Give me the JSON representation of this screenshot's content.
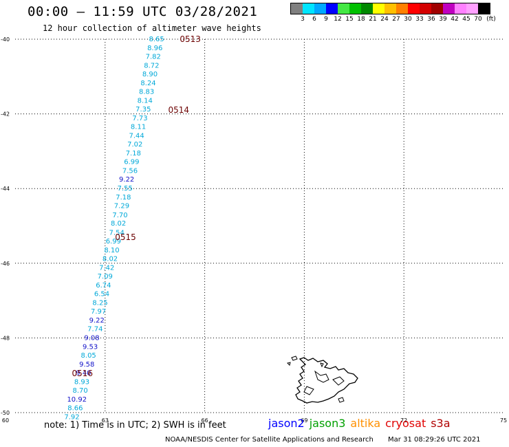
{
  "header": {
    "title": "00:00 – 11:59 UTC 03/28/2021",
    "subtitle": "12 hour collection of altimeter wave heights"
  },
  "legend": {
    "unit": "(ft)",
    "swatch_colors": [
      "#808080",
      "#00e5ff",
      "#00a8ff",
      "#0000ff",
      "#44e844",
      "#00c000",
      "#008800",
      "#ffff00",
      "#ffc000",
      "#ff8000",
      "#ff0000",
      "#d40000",
      "#a00000",
      "#c000c0",
      "#ff80ff",
      "#ffa0ff",
      "#000000"
    ],
    "ticks": [
      "3",
      "6",
      "9",
      "12",
      "15",
      "18",
      "21",
      "24",
      "27",
      "30",
      "33",
      "36",
      "39",
      "42",
      "45",
      "70"
    ]
  },
  "map": {
    "x_axis_labels": [
      "60",
      "63",
      "66",
      "69",
      "72",
      "75"
    ],
    "y_axis_labels": [
      "-40",
      "-42",
      "-44",
      "-46",
      "-48",
      "-50"
    ]
  },
  "chart_data": {
    "type": "scatter",
    "xlim": [
      60,
      75
    ],
    "ylim": [
      -50,
      -40
    ],
    "grid": true,
    "xticks": [
      60,
      63,
      66,
      69,
      72,
      75
    ],
    "yticks": [
      -40,
      -42,
      -44,
      -46,
      -48,
      -50
    ],
    "swh_points": [
      {
        "lon": 64.55,
        "lat": -40.0,
        "swh": "8.65",
        "color": "#00a8d8"
      },
      {
        "lon": 64.5,
        "lat": -40.24,
        "swh": "8.96",
        "color": "#00a8d8"
      },
      {
        "lon": 64.45,
        "lat": -40.47,
        "swh": "7.82",
        "color": "#00a8d8"
      },
      {
        "lon": 64.4,
        "lat": -40.71,
        "swh": "8.72",
        "color": "#00a8d8"
      },
      {
        "lon": 64.35,
        "lat": -40.94,
        "swh": "8.90",
        "color": "#00a8d8"
      },
      {
        "lon": 64.3,
        "lat": -41.18,
        "swh": "8.24",
        "color": "#00a8d8"
      },
      {
        "lon": 64.25,
        "lat": -41.41,
        "swh": "8.83",
        "color": "#00a8d8"
      },
      {
        "lon": 64.2,
        "lat": -41.65,
        "swh": "8.14",
        "color": "#00a8d8"
      },
      {
        "lon": 64.15,
        "lat": -41.88,
        "swh": "7.35",
        "color": "#00a8d8"
      },
      {
        "lon": 64.05,
        "lat": -42.12,
        "swh": "7.73",
        "color": "#00a8d8"
      },
      {
        "lon": 64.0,
        "lat": -42.35,
        "swh": "8.11",
        "color": "#00a8d8"
      },
      {
        "lon": 63.95,
        "lat": -42.59,
        "swh": "7.44",
        "color": "#00a8d8"
      },
      {
        "lon": 63.9,
        "lat": -42.82,
        "swh": "7.02",
        "color": "#00a8d8"
      },
      {
        "lon": 63.85,
        "lat": -43.06,
        "swh": "7.18",
        "color": "#00a8d8"
      },
      {
        "lon": 63.8,
        "lat": -43.29,
        "swh": "6.99",
        "color": "#00a8d8"
      },
      {
        "lon": 63.75,
        "lat": -43.53,
        "swh": "7.56",
        "color": "#00a8d8"
      },
      {
        "lon": 63.65,
        "lat": -43.76,
        "swh": "9.22",
        "color": "#1010c8"
      },
      {
        "lon": 63.6,
        "lat": -44.0,
        "swh": "7.55",
        "color": "#00a8d8"
      },
      {
        "lon": 63.55,
        "lat": -44.24,
        "swh": "7.18",
        "color": "#00a8d8"
      },
      {
        "lon": 63.5,
        "lat": -44.47,
        "swh": "7.29",
        "color": "#00a8d8"
      },
      {
        "lon": 63.45,
        "lat": -44.71,
        "swh": "7.70",
        "color": "#00a8d8"
      },
      {
        "lon": 63.4,
        "lat": -44.94,
        "swh": "8.02",
        "color": "#00a8d8"
      },
      {
        "lon": 63.35,
        "lat": -45.18,
        "swh": "7.54",
        "color": "#00a8d8"
      },
      {
        "lon": 63.25,
        "lat": -45.41,
        "swh": "6.99",
        "color": "#00a8d8"
      },
      {
        "lon": 63.2,
        "lat": -45.65,
        "swh": "8.10",
        "color": "#00a8d8"
      },
      {
        "lon": 63.15,
        "lat": -45.88,
        "swh": "8.02",
        "color": "#00a8d8"
      },
      {
        "lon": 63.05,
        "lat": -46.12,
        "swh": "7.42",
        "color": "#00a8d8"
      },
      {
        "lon": 63.0,
        "lat": -46.35,
        "swh": "7.09",
        "color": "#00a8d8"
      },
      {
        "lon": 62.95,
        "lat": -46.59,
        "swh": "6.74",
        "color": "#00a8d8"
      },
      {
        "lon": 62.9,
        "lat": -46.82,
        "swh": "6.54",
        "color": "#00a8d8"
      },
      {
        "lon": 62.85,
        "lat": -47.06,
        "swh": "8.25",
        "color": "#00a8d8"
      },
      {
        "lon": 62.8,
        "lat": -47.29,
        "swh": "7.97",
        "color": "#00a8d8"
      },
      {
        "lon": 62.75,
        "lat": -47.53,
        "swh": "9.22",
        "color": "#1010c8"
      },
      {
        "lon": 62.7,
        "lat": -47.76,
        "swh": "7.74",
        "color": "#00a8d8"
      },
      {
        "lon": 62.6,
        "lat": -48.0,
        "swh": "9.08",
        "color": "#1010c8"
      },
      {
        "lon": 62.55,
        "lat": -48.24,
        "swh": "9.53",
        "color": "#1010c8"
      },
      {
        "lon": 62.5,
        "lat": -48.47,
        "swh": "8.05",
        "color": "#00a8d8"
      },
      {
        "lon": 62.45,
        "lat": -48.71,
        "swh": "9.58",
        "color": "#1010c8"
      },
      {
        "lon": 62.35,
        "lat": -48.94,
        "swh": "9.40",
        "color": "#1010c8"
      },
      {
        "lon": 62.3,
        "lat": -49.18,
        "swh": "8.93",
        "color": "#00a8d8"
      },
      {
        "lon": 62.25,
        "lat": -49.41,
        "swh": "8.70",
        "color": "#00a8d8"
      },
      {
        "lon": 62.15,
        "lat": -49.65,
        "swh": "10.92",
        "color": "#1010c8"
      },
      {
        "lon": 62.1,
        "lat": -49.88,
        "swh": "8.66",
        "color": "#00a8d8"
      },
      {
        "lon": 62.0,
        "lat": -50.12,
        "swh": "7.92",
        "color": "#00a8d8"
      }
    ],
    "time_labels": [
      {
        "lon": 65.25,
        "lat": -40.0,
        "text": "0513"
      },
      {
        "lon": 64.9,
        "lat": -41.9,
        "text": "0514"
      },
      {
        "lon": 63.3,
        "lat": -45.3,
        "text": "0515"
      },
      {
        "lon": 62.0,
        "lat": -48.95,
        "text": "0516"
      }
    ]
  },
  "footer": {
    "note": "note:  1) Time is in UTC;  2) SWH is in feet",
    "satellites": [
      {
        "name": "jason2",
        "color": "#0000ff"
      },
      {
        "name": "jason3",
        "color": "#00a000"
      },
      {
        "name": "altika",
        "color": "#ff9000"
      },
      {
        "name": "cryosat",
        "color": "#e00000"
      },
      {
        "name": "s3a",
        "color": "#b00000"
      }
    ],
    "credit_org": "NOAA/NESDIS Center for Satellite Applications and Research",
    "credit_time": "Mar 31 08:29:26 UTC 2021"
  }
}
